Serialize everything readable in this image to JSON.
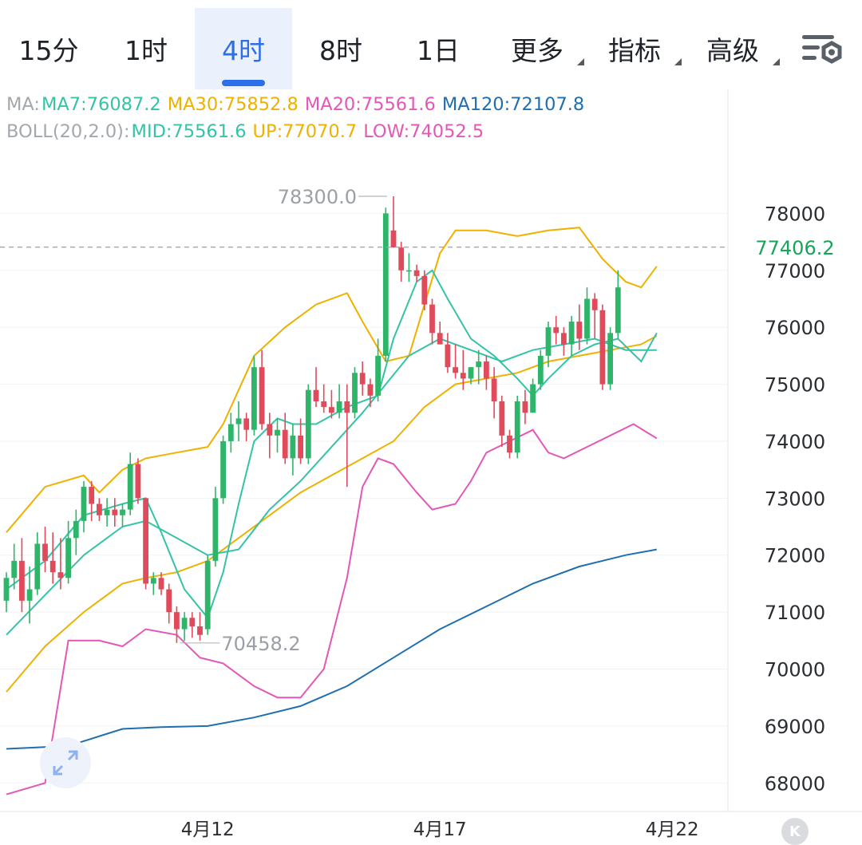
{
  "tabs": [
    {
      "label": "15分",
      "active": false
    },
    {
      "label": "1时",
      "active": false
    },
    {
      "label": "4时",
      "active": true
    },
    {
      "label": "8时",
      "active": false
    },
    {
      "label": "1日",
      "active": false
    },
    {
      "label": "更多",
      "active": false,
      "dropdown": true
    },
    {
      "label": "指标",
      "active": false,
      "dropdown": true
    },
    {
      "label": "高级",
      "active": false,
      "dropdown": true
    }
  ],
  "settings_icon": "chart-settings-icon",
  "legend": {
    "ma_label": "MA:",
    "ma7": "MA7:76087.2",
    "ma30": "MA30:75852.8",
    "ma20": "MA20:75561.6",
    "ma120": "MA120:72107.8",
    "boll_label": "BOLL(20,2.0):",
    "mid": "MID:75561.6",
    "up": "UP:77070.7",
    "low": "LOW:74052.5"
  },
  "colors": {
    "up": "#2fb56a",
    "down": "#e04b5b",
    "ma7": "#34c3a6",
    "ma30": "#efb100",
    "ma20": "#e357b8",
    "ma120": "#1f6fb0",
    "mid": "#34c3a6",
    "boll_up": "#efb100",
    "boll_low": "#e357b8",
    "accent": "#2d6fe8"
  },
  "chart_data": {
    "type": "candlestick",
    "y_ticks": [
      78000,
      77000,
      76000,
      75000,
      74000,
      73000,
      72000,
      71000,
      70000,
      69000,
      68000
    ],
    "ylim": [
      67500,
      79000
    ],
    "x_labels": [
      {
        "label": "4月12",
        "index": 26
      },
      {
        "label": "4月17",
        "index": 56
      },
      {
        "label": "4月22",
        "index": 86
      }
    ],
    "last_price": "77406.2",
    "last_price_value": 77406.2,
    "high_annotation": {
      "label": "78300.0",
      "value": 78300.0,
      "index": 50
    },
    "low_annotation": {
      "label": "70458.2",
      "value": 70458.2,
      "index": 22
    },
    "candles": [
      [
        71200,
        71700,
        71000,
        71600
      ],
      [
        71600,
        72200,
        71400,
        71900
      ],
      [
        71900,
        72300,
        71000,
        71200
      ],
      [
        71200,
        71800,
        70800,
        71400
      ],
      [
        71400,
        72400,
        71300,
        72200
      ],
      [
        72200,
        72500,
        71700,
        71900
      ],
      [
        71900,
        72400,
        71500,
        71700
      ],
      [
        71700,
        72300,
        71400,
        71600
      ],
      [
        71600,
        72600,
        71500,
        72300
      ],
      [
        72300,
        72800,
        72000,
        72600
      ],
      [
        72600,
        73300,
        72400,
        73200
      ],
      [
        73200,
        73300,
        72600,
        72900
      ],
      [
        72900,
        73000,
        72600,
        72700
      ],
      [
        72700,
        73000,
        72500,
        72800
      ],
      [
        72800,
        73000,
        72500,
        72700
      ],
      [
        72700,
        72900,
        72500,
        72800
      ],
      [
        72800,
        73800,
        72700,
        73600
      ],
      [
        73600,
        73700,
        72900,
        73000
      ],
      [
        73000,
        73000,
        71400,
        71500
      ],
      [
        71500,
        71700,
        71300,
        71600
      ],
      [
        71600,
        71700,
        71300,
        71400
      ],
      [
        71400,
        71500,
        70800,
        71000
      ],
      [
        71000,
        71100,
        70458,
        70700
      ],
      [
        70700,
        71000,
        70500,
        70900
      ],
      [
        70900,
        71000,
        70550,
        70750
      ],
      [
        70750,
        71000,
        70500,
        70600
      ],
      [
        70700,
        72000,
        70600,
        71900
      ],
      [
        71900,
        73200,
        71800,
        73000
      ],
      [
        73000,
        74100,
        72900,
        74000
      ],
      [
        74000,
        74500,
        73800,
        74300
      ],
      [
        74300,
        74700,
        74000,
        74400
      ],
      [
        74400,
        74500,
        74000,
        74200
      ],
      [
        74200,
        75500,
        74100,
        75300
      ],
      [
        75300,
        75600,
        74200,
        74300
      ],
      [
        74300,
        74500,
        73700,
        74100
      ],
      [
        74100,
        74400,
        73800,
        74200
      ],
      [
        74200,
        74500,
        73600,
        73700
      ],
      [
        73700,
        74300,
        73400,
        74100
      ],
      [
        74100,
        74400,
        73600,
        73700
      ],
      [
        73700,
        75000,
        73600,
        74900
      ],
      [
        74900,
        75300,
        74600,
        74700
      ],
      [
        74700,
        75000,
        74500,
        74600
      ],
      [
        74600,
        74900,
        74400,
        74500
      ],
      [
        74500,
        75000,
        74400,
        74700
      ],
      [
        74700,
        75000,
        73200,
        74500
      ],
      [
        74500,
        75300,
        74400,
        75200
      ],
      [
        75200,
        75400,
        74800,
        75000
      ],
      [
        75000,
        75100,
        74600,
        74800
      ],
      [
        74800,
        75800,
        74700,
        75500
      ],
      [
        75500,
        78100,
        75400,
        78000
      ],
      [
        77700,
        78300,
        77400,
        77400
      ],
      [
        77400,
        77500,
        76800,
        77000
      ],
      [
        77000,
        77300,
        76800,
        77000
      ],
      [
        77000,
        77100,
        76800,
        76900
      ],
      [
        76900,
        77000,
        76300,
        76400
      ],
      [
        76400,
        76500,
        75700,
        75900
      ],
      [
        75900,
        76100,
        75700,
        75700
      ],
      [
        75700,
        75900,
        75200,
        75300
      ],
      [
        75300,
        75700,
        75100,
        75200
      ],
      [
        75200,
        75600,
        74900,
        75100
      ],
      [
        75100,
        75300,
        75000,
        75300
      ],
      [
        75300,
        75600,
        75000,
        75400
      ],
      [
        75400,
        75500,
        74900,
        75100
      ],
      [
        75100,
        75300,
        74400,
        74700
      ],
      [
        74700,
        74800,
        73900,
        74100
      ],
      [
        74100,
        74200,
        73700,
        73800
      ],
      [
        73800,
        74800,
        73700,
        74700
      ],
      [
        74700,
        74900,
        74300,
        74500
      ],
      [
        74500,
        75100,
        74500,
        75000
      ],
      [
        75000,
        75600,
        74900,
        75500
      ],
      [
        75500,
        76100,
        75300,
        76000
      ],
      [
        76000,
        76200,
        75700,
        75900
      ],
      [
        75900,
        76000,
        75500,
        75700
      ],
      [
        75700,
        76200,
        75500,
        76100
      ],
      [
        76100,
        76400,
        75600,
        75800
      ],
      [
        75800,
        76700,
        75700,
        76500
      ],
      [
        76500,
        76600,
        75800,
        76300
      ],
      [
        76300,
        76400,
        74900,
        75000
      ],
      [
        75000,
        76000,
        74900,
        75900
      ],
      [
        75900,
        77000,
        75800,
        76700
      ]
    ],
    "series": {
      "ma7": [
        [
          0,
          71400
        ],
        [
          5,
          71900
        ],
        [
          10,
          72700
        ],
        [
          15,
          72900
        ],
        [
          18,
          73000
        ],
        [
          20,
          72400
        ],
        [
          23,
          71400
        ],
        [
          26,
          70900
        ],
        [
          28,
          71700
        ],
        [
          30,
          72900
        ],
        [
          32,
          74000
        ],
        [
          35,
          74400
        ],
        [
          37,
          74300
        ],
        [
          40,
          74300
        ],
        [
          44,
          74600
        ],
        [
          48,
          74800
        ],
        [
          50,
          75800
        ],
        [
          53,
          76800
        ],
        [
          55,
          77000
        ],
        [
          57,
          76500
        ],
        [
          60,
          75800
        ],
        [
          63,
          75500
        ],
        [
          66,
          75100
        ],
        [
          68,
          74800
        ],
        [
          70,
          75100
        ],
        [
          73,
          75500
        ],
        [
          76,
          75700
        ],
        [
          79,
          75800
        ],
        [
          82,
          75400
        ],
        [
          84,
          75900
        ]
      ],
      "mid": [
        [
          0,
          70600
        ],
        [
          5,
          71300
        ],
        [
          10,
          72000
        ],
        [
          15,
          72500
        ],
        [
          18,
          72600
        ],
        [
          22,
          72300
        ],
        [
          26,
          72000
        ],
        [
          30,
          72100
        ],
        [
          34,
          72800
        ],
        [
          38,
          73300
        ],
        [
          42,
          73900
        ],
        [
          46,
          74500
        ],
        [
          49,
          75000
        ],
        [
          52,
          75500
        ],
        [
          56,
          75800
        ],
        [
          60,
          75600
        ],
        [
          64,
          75400
        ],
        [
          68,
          75600
        ],
        [
          72,
          75700
        ],
        [
          76,
          75800
        ],
        [
          80,
          75600
        ],
        [
          84,
          75600
        ]
      ],
      "ma30": [
        [
          0,
          69600
        ],
        [
          5,
          70400
        ],
        [
          10,
          71000
        ],
        [
          15,
          71500
        ],
        [
          18,
          71600
        ],
        [
          22,
          71700
        ],
        [
          26,
          71900
        ],
        [
          30,
          72300
        ],
        [
          34,
          72700
        ],
        [
          38,
          73100
        ],
        [
          42,
          73400
        ],
        [
          46,
          73700
        ],
        [
          50,
          74000
        ],
        [
          54,
          74600
        ],
        [
          58,
          75000
        ],
        [
          62,
          75100
        ],
        [
          66,
          75200
        ],
        [
          70,
          75400
        ],
        [
          74,
          75500
        ],
        [
          78,
          75600
        ],
        [
          82,
          75700
        ],
        [
          84,
          75850
        ]
      ],
      "boll_up": [
        [
          0,
          72400
        ],
        [
          5,
          73200
        ],
        [
          10,
          73400
        ],
        [
          12,
          73100
        ],
        [
          15,
          73500
        ],
        [
          18,
          73700
        ],
        [
          22,
          73800
        ],
        [
          26,
          73900
        ],
        [
          28,
          74300
        ],
        [
          32,
          75500
        ],
        [
          36,
          76000
        ],
        [
          40,
          76400
        ],
        [
          44,
          76600
        ],
        [
          46,
          76100
        ],
        [
          49,
          75400
        ],
        [
          52,
          75500
        ],
        [
          54,
          76400
        ],
        [
          56,
          77300
        ],
        [
          58,
          77700
        ],
        [
          62,
          77700
        ],
        [
          66,
          77600
        ],
        [
          70,
          77700
        ],
        [
          74,
          77750
        ],
        [
          77,
          77200
        ],
        [
          80,
          76800
        ],
        [
          82,
          76700
        ],
        [
          84,
          77070
        ]
      ],
      "boll_low": [
        [
          0,
          67800
        ],
        [
          5,
          68000
        ],
        [
          8,
          70500
        ],
        [
          12,
          70500
        ],
        [
          15,
          70400
        ],
        [
          18,
          70700
        ],
        [
          22,
          70600
        ],
        [
          25,
          70200
        ],
        [
          28,
          70100
        ],
        [
          32,
          69700
        ],
        [
          35,
          69500
        ],
        [
          38,
          69500
        ],
        [
          41,
          70000
        ],
        [
          44,
          71600
        ],
        [
          46,
          73200
        ],
        [
          48,
          73700
        ],
        [
          50,
          73600
        ],
        [
          53,
          73100
        ],
        [
          55,
          72800
        ],
        [
          58,
          72900
        ],
        [
          60,
          73300
        ],
        [
          62,
          73800
        ],
        [
          65,
          74000
        ],
        [
          68,
          74200
        ],
        [
          70,
          73800
        ],
        [
          72,
          73700
        ],
        [
          75,
          73900
        ],
        [
          78,
          74100
        ],
        [
          81,
          74300
        ],
        [
          84,
          74050
        ]
      ],
      "ma120": [
        [
          0,
          68600
        ],
        [
          8,
          68650
        ],
        [
          15,
          68950
        ],
        [
          20,
          68980
        ],
        [
          26,
          69000
        ],
        [
          32,
          69150
        ],
        [
          38,
          69350
        ],
        [
          44,
          69700
        ],
        [
          50,
          70200
        ],
        [
          56,
          70700
        ],
        [
          62,
          71100
        ],
        [
          68,
          71500
        ],
        [
          74,
          71800
        ],
        [
          80,
          72000
        ],
        [
          84,
          72100
        ]
      ]
    }
  }
}
